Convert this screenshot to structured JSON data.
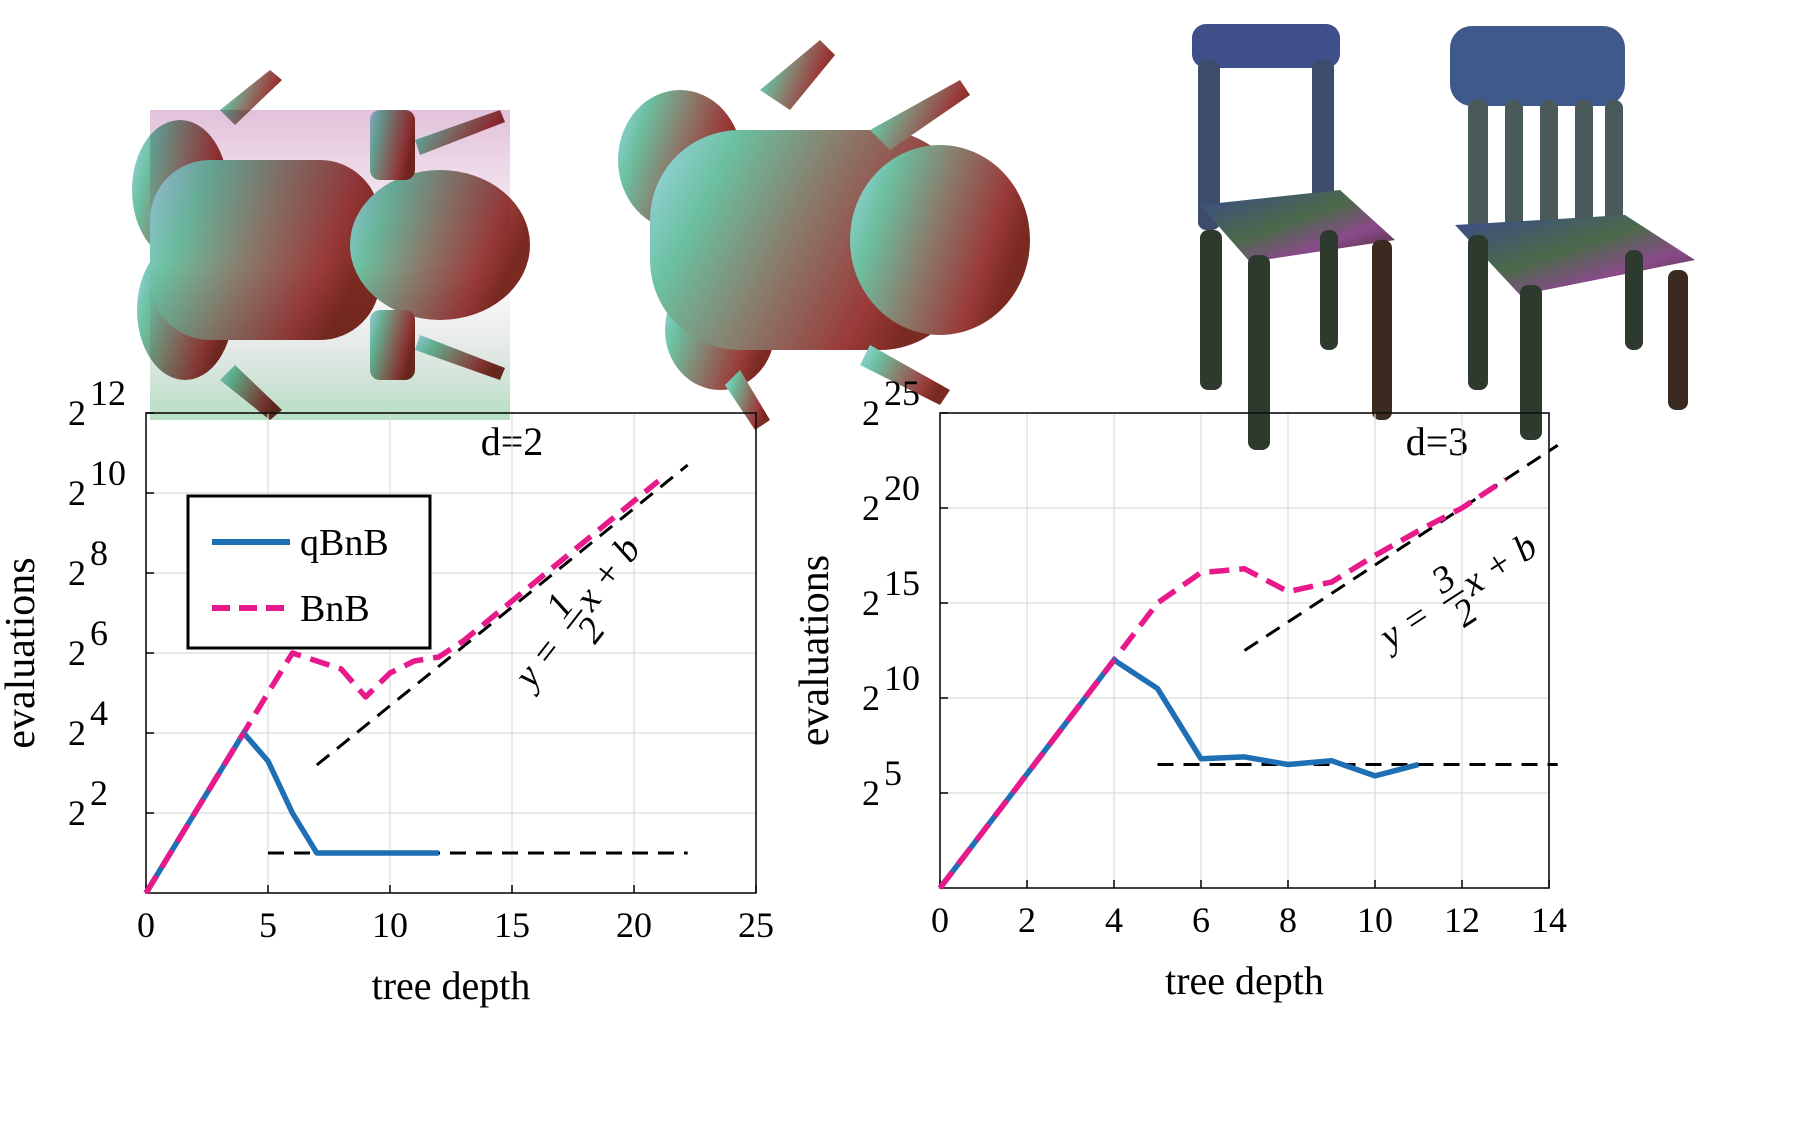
{
  "top_images": [
    {
      "name": "frog-pair",
      "label": ""
    },
    {
      "name": "chair-pair",
      "label": ""
    }
  ],
  "chart_data": [
    {
      "type": "line",
      "panel_label": "d=2",
      "xlabel": "tree depth",
      "ylabel": "evaluations",
      "xlim": [
        0,
        25
      ],
      "x_ticks": [
        "0",
        "5",
        "10",
        "15",
        "20",
        "25"
      ],
      "y_scale": "log2",
      "ylim_exp": [
        0,
        12
      ],
      "y_ticks": [
        {
          "base": "2",
          "exp": "2"
        },
        {
          "base": "2",
          "exp": "4"
        },
        {
          "base": "2",
          "exp": "6"
        },
        {
          "base": "2",
          "exp": "8"
        },
        {
          "base": "2",
          "exp": "10"
        },
        {
          "base": "2",
          "exp": "12"
        }
      ],
      "grid": true,
      "legend": {
        "position": "top-left",
        "entries": [
          "qBnB",
          "BnB"
        ]
      },
      "series": [
        {
          "name": "qBnB",
          "color": "#1f6fb5",
          "dash": "solid",
          "x": [
            0,
            1,
            2,
            3,
            4,
            5,
            6,
            7,
            8,
            9,
            10,
            11,
            12
          ],
          "y_log2": [
            0,
            1,
            2,
            3,
            4,
            3.3,
            2,
            1,
            1,
            1,
            1,
            1,
            1
          ]
        },
        {
          "name": "BnB",
          "color": "#e8198b",
          "dash": "dashed",
          "x": [
            0,
            1,
            2,
            3,
            4,
            5,
            6,
            7,
            8,
            9,
            10,
            11,
            12,
            13,
            14,
            15,
            16,
            17,
            18,
            19,
            20,
            21
          ],
          "y_log2": [
            0,
            1,
            2,
            3,
            4,
            5,
            6,
            5.8,
            5.6,
            4.9,
            5.5,
            5.8,
            5.9,
            6.3,
            6.8,
            7.3,
            7.8,
            8.3,
            8.8,
            9.3,
            9.8,
            10.3
          ]
        }
      ],
      "reference_lines": [
        {
          "x": [
            7,
            22.2
          ],
          "y_log2": [
            3.2,
            10.7
          ],
          "color": "#000000",
          "dash": "dashed"
        },
        {
          "x": [
            5,
            22.2
          ],
          "y_log2": [
            1,
            1
          ],
          "color": "#000000",
          "dash": "dashed"
        }
      ],
      "annotation": {
        "prefix": "y =",
        "num": "1",
        "den": "2",
        "suffix": "x + b"
      }
    },
    {
      "type": "line",
      "panel_label": "d=3",
      "xlabel": "tree depth",
      "ylabel": "evaluations",
      "xlim": [
        0,
        14
      ],
      "x_ticks": [
        "0",
        "2",
        "4",
        "6",
        "8",
        "10",
        "12",
        "14"
      ],
      "y_scale": "log2",
      "ylim_exp": [
        0,
        25
      ],
      "y_ticks": [
        {
          "base": "2",
          "exp": "5"
        },
        {
          "base": "2",
          "exp": "10"
        },
        {
          "base": "2",
          "exp": "15"
        },
        {
          "base": "2",
          "exp": "20"
        },
        {
          "base": "2",
          "exp": "25"
        }
      ],
      "grid": true,
      "series": [
        {
          "name": "qBnB",
          "color": "#1f6fb5",
          "dash": "solid",
          "x": [
            0,
            1,
            2,
            3,
            4,
            5,
            6,
            7,
            8,
            9,
            10,
            11
          ],
          "y_log2": [
            0,
            3,
            6,
            9,
            12,
            10.5,
            6.8,
            6.9,
            6.5,
            6.7,
            5.9,
            6.5
          ]
        },
        {
          "name": "BnB",
          "color": "#e8198b",
          "dash": "dashed",
          "x": [
            0,
            1,
            2,
            3,
            4,
            5,
            6,
            7,
            8,
            9,
            10,
            11,
            12,
            13
          ],
          "y_log2": [
            0,
            3,
            6,
            9,
            12,
            15,
            16.6,
            16.8,
            15.6,
            16.1,
            17.5,
            18.8,
            20,
            21.5
          ]
        }
      ],
      "reference_lines": [
        {
          "x": [
            7,
            14.2
          ],
          "y_log2": [
            12.5,
            23.3
          ],
          "color": "#000000",
          "dash": "dashed"
        },
        {
          "x": [
            5,
            14.2
          ],
          "y_log2": [
            6.5,
            6.5
          ],
          "color": "#000000",
          "dash": "dashed"
        }
      ],
      "annotation": {
        "prefix": "y =",
        "num": "3",
        "den": "2",
        "suffix": "x + b"
      }
    }
  ]
}
